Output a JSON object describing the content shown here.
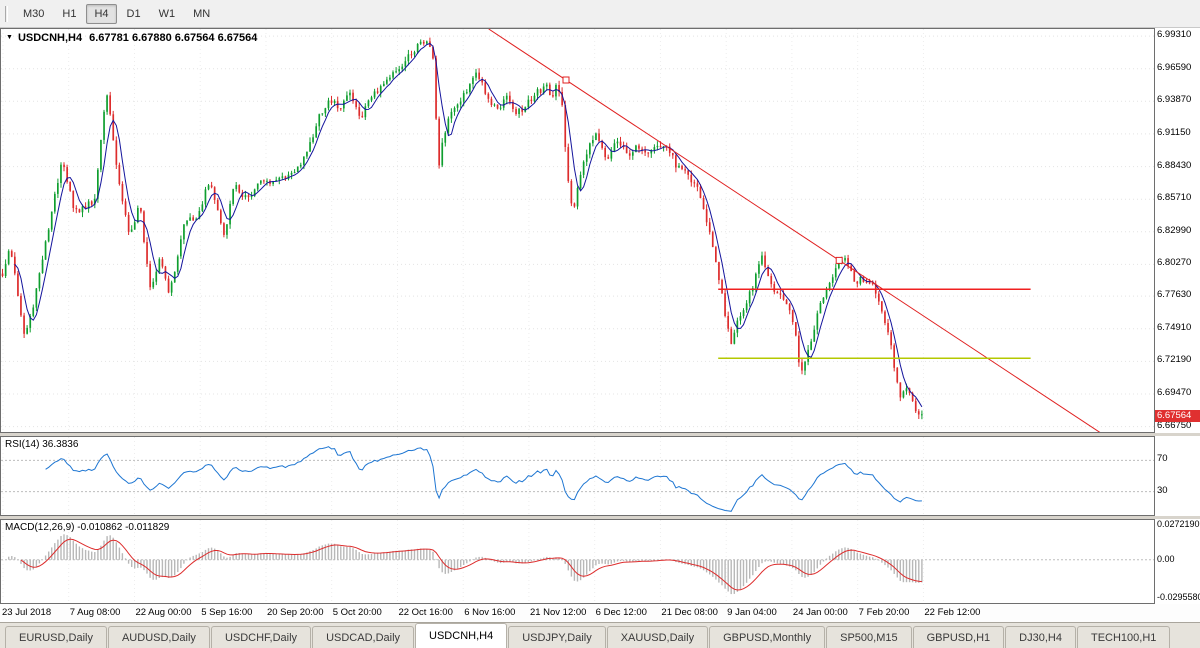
{
  "toolbar": {
    "timeframes": [
      {
        "label": "M30",
        "active": false
      },
      {
        "label": "H1",
        "active": false
      },
      {
        "label": "H4",
        "active": true
      },
      {
        "label": "D1",
        "active": false
      },
      {
        "label": "W1",
        "active": false
      },
      {
        "label": "MN",
        "active": false
      }
    ]
  },
  "chart": {
    "title": "USDCNH,H4",
    "ohlc": "6.67781 6.67880 6.67564 6.67564",
    "current_price": "6.67564",
    "price_axis": [
      "6.99310",
      "6.96590",
      "6.93870",
      "6.91150",
      "6.88430",
      "6.85710",
      "6.82990",
      "6.80270",
      "6.77630",
      "6.74910",
      "6.72190",
      "6.69470",
      "6.66750"
    ],
    "time_axis": [
      "23 Jul 2018",
      "7 Aug 08:00",
      "22 Aug 00:00",
      "5 Sep 16:00",
      "20 Sep 20:00",
      "5 Oct 20:00",
      "22 Oct 16:00",
      "6 Nov 16:00",
      "21 Nov 12:00",
      "6 Dec 12:00",
      "21 Dec 08:00",
      "9 Jan 04:00",
      "24 Jan 00:00",
      "7 Feb 20:00",
      "22 Feb 12:00"
    ],
    "rsi": {
      "label": "RSI(14) 36.3836",
      "period": 14,
      "levels": [
        "70",
        "30"
      ],
      "last": 36.3836
    },
    "macd": {
      "label": "MACD(12,26,9) -0.010862 -0.011829",
      "axis": [
        "0.0272190",
        "0.00",
        "-0.0295580"
      ],
      "macd_value": -0.010862,
      "signal_value": -0.011829
    },
    "colors": {
      "up": "#0f9e2f",
      "down": "#dd2c2c",
      "ma": "#14149c",
      "rsi": "#1e76d2",
      "signal": "#dd2c2c",
      "hist": "#b8b8b8",
      "trend": "#e02020",
      "hline_red": "#f02020",
      "hline_olive": "#b4c800",
      "badge": "#e03030",
      "grid": "#e4e4e4",
      "vgrid": "#ededed",
      "level": "#bdbdbd"
    }
  },
  "chart_data": {
    "type": "candlestick",
    "symbol": "USDCNH",
    "timeframe": "H4",
    "last_ohlc": {
      "open": 6.67781,
      "high": 6.6788,
      "low": 6.67564,
      "close": 6.67564
    },
    "price_range": {
      "max": 6.999,
      "min": 6.663
    },
    "data_width_frac": 0.8,
    "num_candles": 300,
    "noise": 0.006,
    "wick": 0.004,
    "close_waypoints": [
      [
        0.0,
        6.795
      ],
      [
        0.008,
        6.818
      ],
      [
        0.016,
        6.782
      ],
      [
        0.024,
        6.742
      ],
      [
        0.033,
        6.768
      ],
      [
        0.049,
        6.828
      ],
      [
        0.065,
        6.893
      ],
      [
        0.078,
        6.845
      ],
      [
        0.1,
        6.856
      ],
      [
        0.113,
        6.948
      ],
      [
        0.126,
        6.876
      ],
      [
        0.138,
        6.824
      ],
      [
        0.149,
        6.855
      ],
      [
        0.16,
        6.782
      ],
      [
        0.171,
        6.808
      ],
      [
        0.182,
        6.778
      ],
      [
        0.198,
        6.838
      ],
      [
        0.214,
        6.845
      ],
      [
        0.225,
        6.874
      ],
      [
        0.241,
        6.827
      ],
      [
        0.252,
        6.869
      ],
      [
        0.268,
        6.856
      ],
      [
        0.279,
        6.871
      ],
      [
        0.301,
        6.873
      ],
      [
        0.322,
        6.884
      ],
      [
        0.333,
        6.901
      ],
      [
        0.344,
        6.925
      ],
      [
        0.355,
        6.941
      ],
      [
        0.366,
        6.933
      ],
      [
        0.377,
        6.947
      ],
      [
        0.388,
        6.924
      ],
      [
        0.398,
        6.937
      ],
      [
        0.409,
        6.95
      ],
      [
        0.42,
        6.959
      ],
      [
        0.431,
        6.967
      ],
      [
        0.442,
        6.976
      ],
      [
        0.452,
        6.984
      ],
      [
        0.462,
        6.989
      ],
      [
        0.468,
        6.977
      ],
      [
        0.474,
        6.884
      ],
      [
        0.484,
        6.925
      ],
      [
        0.495,
        6.937
      ],
      [
        0.506,
        6.95
      ],
      [
        0.517,
        6.963
      ],
      [
        0.528,
        6.941
      ],
      [
        0.539,
        6.933
      ],
      [
        0.549,
        6.942
      ],
      [
        0.56,
        6.929
      ],
      [
        0.571,
        6.937
      ],
      [
        0.582,
        6.947
      ],
      [
        0.592,
        6.95
      ],
      [
        0.598,
        6.941
      ],
      [
        0.603,
        6.953
      ],
      [
        0.609,
        6.933
      ],
      [
        0.614,
        6.882
      ],
      [
        0.62,
        6.844
      ],
      [
        0.625,
        6.865
      ],
      [
        0.636,
        6.899
      ],
      [
        0.647,
        6.911
      ],
      [
        0.652,
        6.902
      ],
      [
        0.657,
        6.89
      ],
      [
        0.663,
        6.899
      ],
      [
        0.668,
        6.907
      ],
      [
        0.679,
        6.894
      ],
      [
        0.69,
        6.9
      ],
      [
        0.701,
        6.892
      ],
      [
        0.712,
        6.9
      ],
      [
        0.722,
        6.902
      ],
      [
        0.733,
        6.885
      ],
      [
        0.744,
        6.877
      ],
      [
        0.755,
        6.869
      ],
      [
        0.76,
        6.856
      ],
      [
        0.766,
        6.839
      ],
      [
        0.771,
        6.822
      ],
      [
        0.776,
        6.805
      ],
      [
        0.782,
        6.78
      ],
      [
        0.787,
        6.754
      ],
      [
        0.793,
        6.737
      ],
      [
        0.798,
        6.754
      ],
      [
        0.803,
        6.763
      ],
      [
        0.809,
        6.771
      ],
      [
        0.814,
        6.78
      ],
      [
        0.82,
        6.797
      ],
      [
        0.825,
        6.811
      ],
      [
        0.83,
        6.801
      ],
      [
        0.836,
        6.788
      ],
      [
        0.841,
        6.78
      ],
      [
        0.852,
        6.771
      ],
      [
        0.863,
        6.746
      ],
      [
        0.868,
        6.708
      ],
      [
        0.874,
        6.725
      ],
      [
        0.879,
        6.737
      ],
      [
        0.884,
        6.754
      ],
      [
        0.89,
        6.771
      ],
      [
        0.895,
        6.78
      ],
      [
        0.901,
        6.788
      ],
      [
        0.906,
        6.797
      ],
      [
        0.912,
        6.804
      ],
      [
        0.917,
        6.807
      ],
      [
        0.922,
        6.797
      ],
      [
        0.928,
        6.788
      ],
      [
        0.933,
        6.792
      ],
      [
        0.939,
        6.784
      ],
      [
        0.944,
        6.788
      ],
      [
        0.949,
        6.78
      ],
      [
        0.955,
        6.771
      ],
      [
        0.96,
        6.754
      ],
      [
        0.966,
        6.737
      ],
      [
        0.971,
        6.712
      ],
      [
        0.976,
        6.69
      ],
      [
        0.982,
        6.703
      ],
      [
        0.987,
        6.695
      ],
      [
        0.993,
        6.682
      ],
      [
        1.0,
        6.676
      ]
    ],
    "trendline": {
      "x1": 0.423,
      "p1": 6.999,
      "x2": 0.962,
      "p2": 6.657,
      "markers": [
        0.49,
        0.727
      ]
    },
    "hlines": [
      {
        "price": 6.782,
        "x1": 0.622,
        "x2": 0.893,
        "color_key": "hline_red"
      },
      {
        "price": 6.7245,
        "x1": 0.622,
        "x2": 0.893,
        "color_key": "hline_olive"
      }
    ],
    "macd_range": {
      "max": 0.0302,
      "min": -0.0328
    }
  },
  "tabs": [
    {
      "label": "EURUSD,Daily",
      "active": false
    },
    {
      "label": "AUDUSD,Daily",
      "active": false
    },
    {
      "label": "USDCHF,Daily",
      "active": false
    },
    {
      "label": "USDCAD,Daily",
      "active": false
    },
    {
      "label": "USDCNH,H4",
      "active": true
    },
    {
      "label": "USDJPY,Daily",
      "active": false
    },
    {
      "label": "XAUUSD,Daily",
      "active": false
    },
    {
      "label": "GBPUSD,Monthly",
      "active": false
    },
    {
      "label": "SP500,M15",
      "active": false
    },
    {
      "label": "GBPUSD,H1",
      "active": false
    },
    {
      "label": "DJ30,H4",
      "active": false
    },
    {
      "label": "TECH100,H1",
      "active": false
    }
  ]
}
